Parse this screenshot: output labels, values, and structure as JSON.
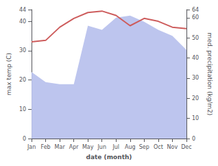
{
  "chart_data": {
    "type": "line",
    "xlabel": "date (month)",
    "ylabel": "max temp (C)",
    "y2label": "med. precipitation (kg/m2)",
    "categories": [
      "Jan",
      "Feb",
      "Mar",
      "Apr",
      "May",
      "Jun",
      "Jul",
      "Aug",
      "Sep",
      "Oct",
      "Nov",
      "Dec"
    ],
    "series": [
      {
        "type": "area",
        "axis": "y2",
        "color": "#bdc5ee",
        "values": [
          33,
          28,
          27,
          27,
          56,
          54,
          60,
          61,
          58,
          54,
          51,
          44
        ]
      },
      {
        "type": "line",
        "color": "#cd5c5c",
        "values": [
          33,
          33.5,
          38,
          41,
          43,
          43.5,
          42,
          38.5,
          41,
          40,
          38,
          37.5
        ]
      }
    ],
    "ylim": [
      0,
      44
    ],
    "yticks": [
      0,
      10,
      20,
      30,
      40
    ],
    "y2lim": [
      0,
      64
    ],
    "y2ticks": [
      0,
      10,
      20,
      30,
      40,
      50,
      60
    ],
    "grid": false
  }
}
